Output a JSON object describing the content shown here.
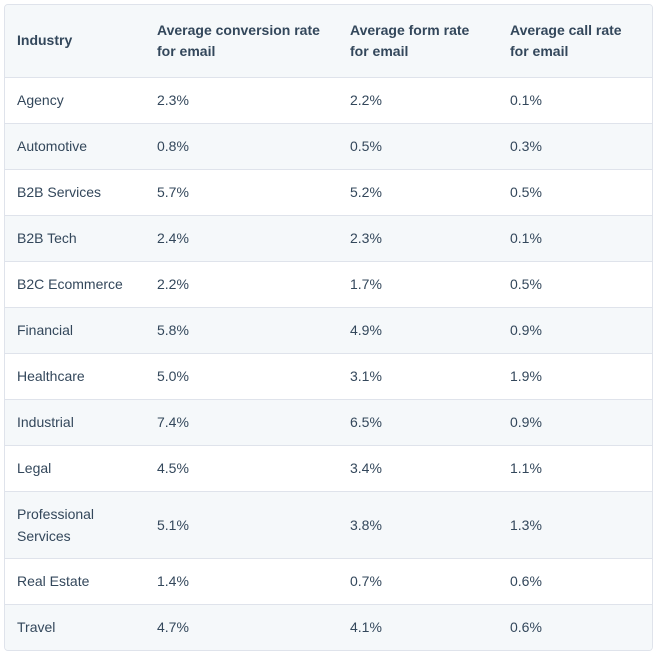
{
  "table": {
    "headers": [
      "Industry",
      "Average conversion rate for email",
      "Average form rate for email",
      "Average call rate for email"
    ],
    "rows": [
      [
        "Agency",
        "2.3%",
        "2.2%",
        "0.1%"
      ],
      [
        "Automotive",
        "0.8%",
        "0.5%",
        "0.3%"
      ],
      [
        "B2B Services",
        "5.7%",
        "5.2%",
        "0.5%"
      ],
      [
        "B2B Tech",
        "2.4%",
        "2.3%",
        "0.1%"
      ],
      [
        "B2C Ecommerce",
        "2.2%",
        "1.7%",
        "0.5%"
      ],
      [
        "Financial",
        "5.8%",
        "4.9%",
        "0.9%"
      ],
      [
        "Healthcare",
        "5.0%",
        "3.1%",
        "1.9%"
      ],
      [
        "Industrial",
        "7.4%",
        "6.5%",
        "0.9%"
      ],
      [
        "Legal",
        "4.5%",
        "3.4%",
        "1.1%"
      ],
      [
        "Professional Services",
        "5.1%",
        "3.8%",
        "1.3%"
      ],
      [
        "Real Estate",
        "1.4%",
        "0.7%",
        "0.6%"
      ],
      [
        "Travel",
        "4.7%",
        "4.1%",
        "0.6%"
      ]
    ]
  }
}
